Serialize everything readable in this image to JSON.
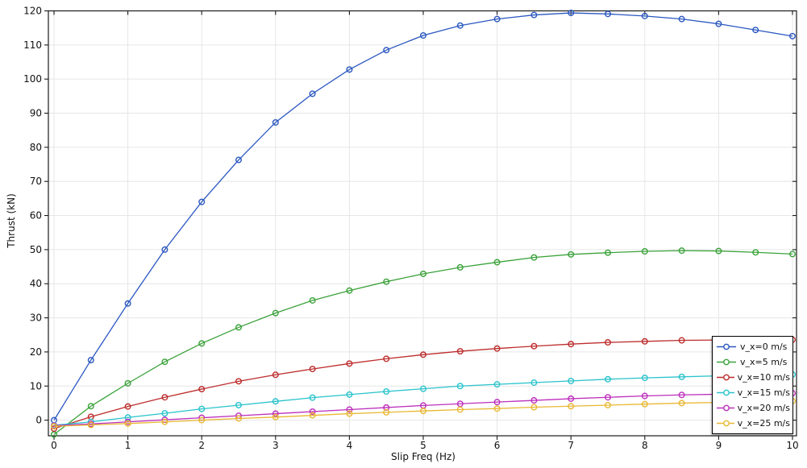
{
  "chart_data": {
    "type": "line",
    "title": "",
    "xlabel": "Slip Freq (Hz)",
    "ylabel": "Thrust (kN)",
    "xlim": [
      0,
      10
    ],
    "ylim": [
      -5,
      120
    ],
    "x_ticks": [
      0,
      1,
      2,
      3,
      4,
      5,
      6,
      7,
      8,
      9,
      10
    ],
    "y_ticks": [
      0,
      10,
      20,
      30,
      40,
      50,
      60,
      70,
      80,
      90,
      100,
      110,
      120
    ],
    "grid": true,
    "legend_position": "right-middle",
    "marker": "open-circle",
    "x": [
      0,
      0.5,
      1,
      1.5,
      2,
      2.5,
      3,
      3.5,
      4,
      4.5,
      5,
      5.5,
      6,
      6.5,
      7,
      7.5,
      8,
      8.5,
      9,
      9.5,
      10
    ],
    "series": [
      {
        "name": "v_x=0 m/s",
        "color": "#2a57c0",
        "values": [
          0,
          17.6,
          34.2,
          50.0,
          64.0,
          76.3,
          87.3,
          95.7,
          102.8,
          108.5,
          112.8,
          115.7,
          117.6,
          118.8,
          119.4,
          119.1,
          118.5,
          117.6,
          116.2,
          114.4,
          112.6
        ]
      },
      {
        "name": "v_x=5 m/s",
        "color": "#3aa23a",
        "values": [
          -4.2,
          4.1,
          10.8,
          17.1,
          22.5,
          27.2,
          31.4,
          35.1,
          38.0,
          40.6,
          42.9,
          44.8,
          46.3,
          47.7,
          48.6,
          49.1,
          49.5,
          49.7,
          49.6,
          49.2,
          48.7
        ]
      },
      {
        "name": "v_x=10 m/s",
        "color": "#bd2c2c",
        "values": [
          -2.5,
          1.0,
          4.0,
          6.7,
          9.1,
          11.4,
          13.3,
          15.0,
          16.6,
          18.0,
          19.2,
          20.2,
          21.0,
          21.7,
          22.3,
          22.8,
          23.1,
          23.4,
          23.5,
          23.6,
          23.6
        ]
      },
      {
        "name": "v_x=15 m/s",
        "color": "#29c3cc",
        "values": [
          -1.5,
          -0.5,
          0.8,
          2.0,
          3.3,
          4.4,
          5.5,
          6.6,
          7.5,
          8.4,
          9.2,
          10.0,
          10.5,
          11.0,
          11.5,
          12.0,
          12.4,
          12.7,
          13.0,
          13.2,
          13.4
        ]
      },
      {
        "name": "v_x=20 m/s",
        "color": "#bd2fbd",
        "values": [
          -1.6,
          -1.1,
          -0.5,
          0.1,
          0.7,
          1.3,
          1.9,
          2.5,
          3.1,
          3.7,
          4.3,
          4.8,
          5.3,
          5.8,
          6.3,
          6.7,
          7.1,
          7.4,
          7.6,
          7.8,
          7.9
        ]
      },
      {
        "name": "v_x=25 m/s",
        "color": "#e8b832",
        "values": [
          -1.8,
          -1.4,
          -1.0,
          -0.5,
          0.0,
          0.5,
          0.9,
          1.4,
          1.9,
          2.3,
          2.7,
          3.1,
          3.4,
          3.8,
          4.1,
          4.4,
          4.7,
          5.0,
          5.2,
          5.4,
          5.6
        ]
      }
    ],
    "colors": {
      "grid": "#e6e6e6",
      "frame": "#1a1a1a",
      "text": "#111111",
      "background": "#ffffff"
    }
  }
}
